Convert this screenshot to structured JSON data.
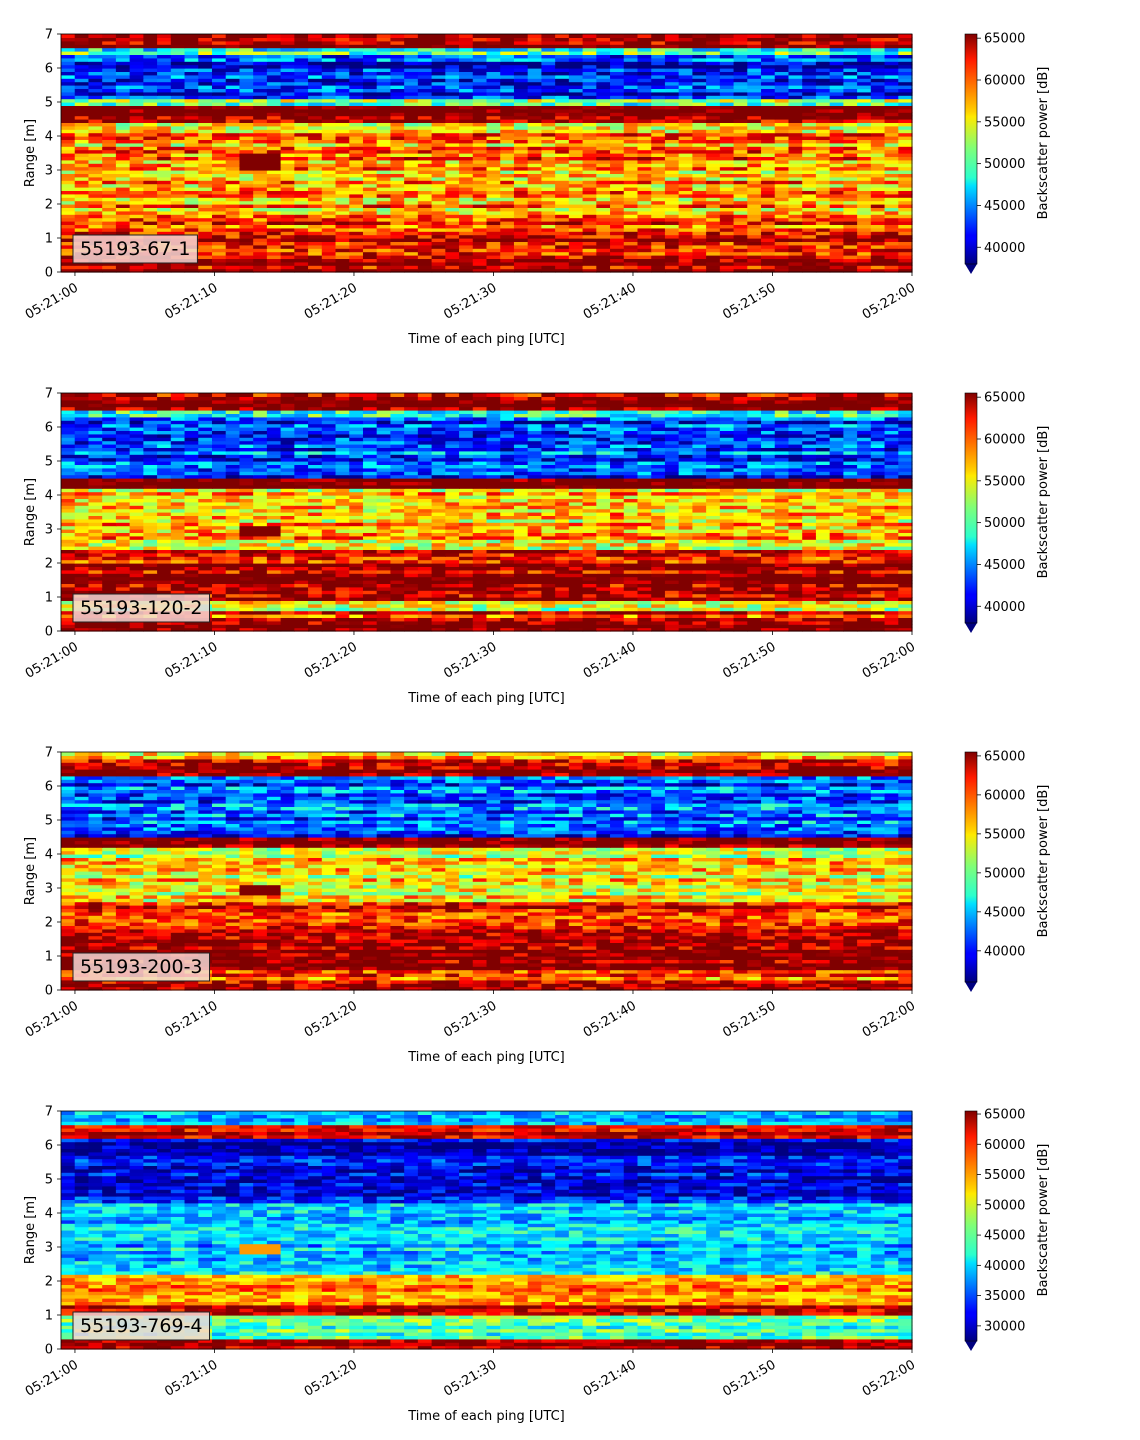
{
  "chart_data": [
    {
      "type": "heatmap",
      "label": "55193-67-1",
      "xlabel": "Time of each ping [UTC]",
      "ylabel": "Range [m]",
      "colorbar_label": "Backscatter power [dB]",
      "x_ticks": [
        "05:21:00",
        "05:21:10",
        "05:21:20",
        "05:21:30",
        "05:21:40",
        "05:21:50",
        "05:22:00"
      ],
      "y_ticks": [
        0,
        1,
        2,
        3,
        4,
        5,
        6,
        7
      ],
      "xlim": [
        "05:20:59",
        "05:22:00"
      ],
      "ylim": [
        0,
        7
      ],
      "colorbar_ticks": [
        40000,
        45000,
        50000,
        55000,
        60000,
        65000
      ],
      "clim": [
        38000,
        65500
      ],
      "colormap": "jet",
      "range_profile": [
        {
          "from": 0.0,
          "to": 0.3,
          "value": 65500
        },
        {
          "from": 0.3,
          "to": 1.0,
          "value": 64000
        },
        {
          "from": 1.0,
          "to": 1.6,
          "value": 61000
        },
        {
          "from": 1.6,
          "to": 4.2,
          "value": 58000
        },
        {
          "from": 4.2,
          "to": 4.4,
          "value": 54000
        },
        {
          "from": 4.4,
          "to": 4.9,
          "value": 65500
        },
        {
          "from": 4.9,
          "to": 5.1,
          "value": 52000
        },
        {
          "from": 5.1,
          "to": 6.4,
          "value": 42000
        },
        {
          "from": 6.4,
          "to": 6.6,
          "value": 50000
        },
        {
          "from": 6.6,
          "to": 7.0,
          "value": 65500
        }
      ],
      "features": [
        {
          "t0": 11,
          "t1": 14.5,
          "r0": 3.0,
          "r1": 3.5,
          "value": 65500
        }
      ]
    },
    {
      "type": "heatmap",
      "label": "55193-120-2",
      "xlabel": "Time of each ping [UTC]",
      "ylabel": "Range [m]",
      "colorbar_label": "Backscatter power [dB]",
      "x_ticks": [
        "05:21:00",
        "05:21:10",
        "05:21:20",
        "05:21:30",
        "05:21:40",
        "05:21:50",
        "05:22:00"
      ],
      "y_ticks": [
        0,
        1,
        2,
        3,
        4,
        5,
        6,
        7
      ],
      "xlim": [
        "05:20:59",
        "05:22:00"
      ],
      "ylim": [
        0,
        7
      ],
      "colorbar_ticks": [
        40000,
        45000,
        50000,
        55000,
        60000,
        65000
      ],
      "clim": [
        38000,
        65500
      ],
      "colormap": "jet",
      "range_profile": [
        {
          "from": 0.0,
          "to": 0.3,
          "value": 65500
        },
        {
          "from": 0.3,
          "to": 0.6,
          "value": 62000
        },
        {
          "from": 0.6,
          "to": 0.9,
          "value": 55000
        },
        {
          "from": 0.9,
          "to": 2.0,
          "value": 65500
        },
        {
          "from": 2.0,
          "to": 2.4,
          "value": 62000
        },
        {
          "from": 2.4,
          "to": 4.2,
          "value": 57000
        },
        {
          "from": 4.2,
          "to": 4.5,
          "value": 65500
        },
        {
          "from": 4.5,
          "to": 6.3,
          "value": 43000
        },
        {
          "from": 6.3,
          "to": 6.5,
          "value": 52000
        },
        {
          "from": 6.5,
          "to": 7.0,
          "value": 65500
        }
      ],
      "features": [
        {
          "t0": 11,
          "t1": 14.5,
          "r0": 2.8,
          "r1": 3.1,
          "value": 65500
        }
      ]
    },
    {
      "type": "heatmap",
      "label": "55193-200-3",
      "xlabel": "Time of each ping [UTC]",
      "ylabel": "Range [m]",
      "colorbar_label": "Backscatter power [dB]",
      "x_ticks": [
        "05:21:00",
        "05:21:10",
        "05:21:20",
        "05:21:30",
        "05:21:40",
        "05:21:50",
        "05:22:00"
      ],
      "y_ticks": [
        0,
        1,
        2,
        3,
        4,
        5,
        6,
        7
      ],
      "xlim": [
        "05:20:59",
        "05:22:00"
      ],
      "ylim": [
        0,
        7
      ],
      "colorbar_ticks": [
        40000,
        45000,
        50000,
        55000,
        60000,
        65000
      ],
      "clim": [
        36000,
        65500
      ],
      "colormap": "jet",
      "range_profile": [
        {
          "from": 0.0,
          "to": 0.3,
          "value": 65500
        },
        {
          "from": 0.3,
          "to": 0.6,
          "value": 60000
        },
        {
          "from": 0.6,
          "to": 1.6,
          "value": 65500
        },
        {
          "from": 1.6,
          "to": 2.6,
          "value": 61000
        },
        {
          "from": 2.6,
          "to": 4.2,
          "value": 55000
        },
        {
          "from": 4.2,
          "to": 4.5,
          "value": 65500
        },
        {
          "from": 4.5,
          "to": 6.3,
          "value": 42000
        },
        {
          "from": 6.3,
          "to": 6.8,
          "value": 65500
        },
        {
          "from": 6.8,
          "to": 7.0,
          "value": 55000
        }
      ],
      "features": [
        {
          "t0": 11,
          "t1": 14.5,
          "r0": 2.8,
          "r1": 3.1,
          "value": 65500
        }
      ]
    },
    {
      "type": "heatmap",
      "label": "55193-769-4",
      "xlabel": "Time of each ping [UTC]",
      "ylabel": "Range [m]",
      "colorbar_label": "Backscatter power [dB]",
      "x_ticks": [
        "05:21:00",
        "05:21:10",
        "05:21:20",
        "05:21:30",
        "05:21:40",
        "05:21:50",
        "05:22:00"
      ],
      "y_ticks": [
        0,
        1,
        2,
        3,
        4,
        5,
        6,
        7
      ],
      "xlim": [
        "05:20:59",
        "05:22:00"
      ],
      "ylim": [
        0,
        7
      ],
      "colorbar_ticks": [
        30000,
        35000,
        40000,
        45000,
        50000,
        55000,
        60000,
        65000
      ],
      "clim": [
        27500,
        65500
      ],
      "colormap": "jet",
      "range_profile": [
        {
          "from": 0.0,
          "to": 0.3,
          "value": 65500
        },
        {
          "from": 0.3,
          "to": 1.0,
          "value": 45000
        },
        {
          "from": 1.0,
          "to": 1.3,
          "value": 63000
        },
        {
          "from": 1.3,
          "to": 2.2,
          "value": 55000
        },
        {
          "from": 2.2,
          "to": 4.3,
          "value": 40000
        },
        {
          "from": 4.3,
          "to": 6.2,
          "value": 31000
        },
        {
          "from": 6.2,
          "to": 6.6,
          "value": 63000
        },
        {
          "from": 6.6,
          "to": 7.0,
          "value": 40000
        }
      ],
      "features": [
        {
          "t0": 11,
          "t1": 14.5,
          "r0": 2.8,
          "r1": 3.1,
          "value": 55000
        }
      ]
    }
  ]
}
